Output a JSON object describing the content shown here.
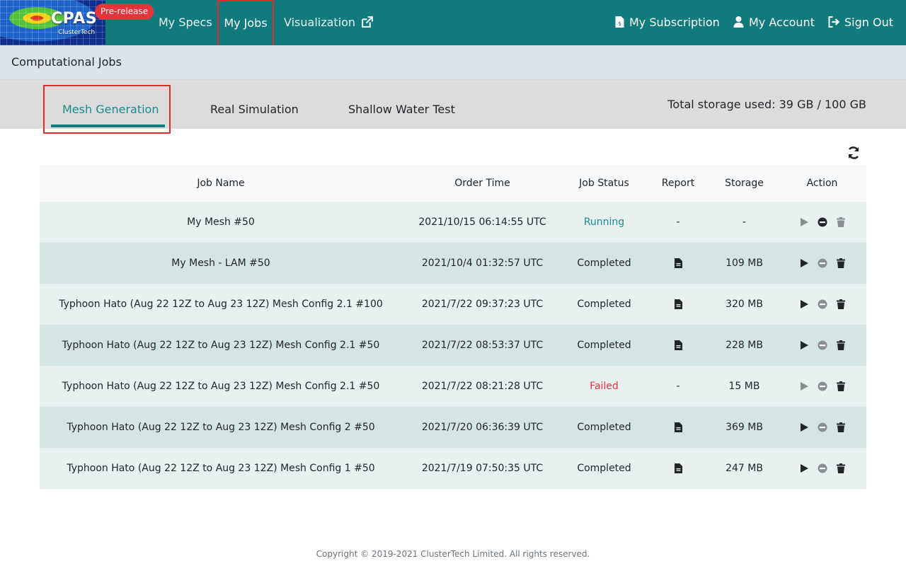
{
  "brand": {
    "logo_text": "CPAS",
    "logo_sub": "ClusterTech",
    "badge": "Pre-release"
  },
  "nav": {
    "my_specs": "My Specs",
    "my_jobs": "My Jobs",
    "visualization": "Visualization",
    "subscription": "My Subscription",
    "account": "My Account",
    "sign_out": "Sign Out"
  },
  "page_title": "Computational Jobs",
  "tabs": [
    {
      "label": "Mesh Generation",
      "active": true
    },
    {
      "label": "Real Simulation",
      "active": false
    },
    {
      "label": "Shallow Water Test",
      "active": false
    }
  ],
  "storage_text": "Total storage used: 39 GB / 100 GB",
  "table": {
    "headers": {
      "name": "Job Name",
      "time": "Order Time",
      "status": "Job Status",
      "report": "Report",
      "storage": "Storage",
      "action": "Action"
    },
    "rows": [
      {
        "name": "My Mesh #50",
        "time": "2021/10/15 06:14:55 UTC",
        "status": "Running",
        "report": "-",
        "storage": "-"
      },
      {
        "name": "My Mesh - LAM #50",
        "time": "2021/10/4 01:32:57 UTC",
        "status": "Completed",
        "report": "doc",
        "storage": "109 MB"
      },
      {
        "name": "Typhoon Hato (Aug 22 12Z to Aug 23 12Z) Mesh Config 2.1 #100",
        "time": "2021/7/22 09:37:23 UTC",
        "status": "Completed",
        "report": "doc",
        "storage": "320 MB"
      },
      {
        "name": "Typhoon Hato (Aug 22 12Z to Aug 23 12Z) Mesh Config 2.1 #50",
        "time": "2021/7/22 08:53:37 UTC",
        "status": "Completed",
        "report": "doc",
        "storage": "228 MB"
      },
      {
        "name": "Typhoon Hato (Aug 22 12Z to Aug 23 12Z) Mesh Config 2.1 #50",
        "time": "2021/7/22 08:21:28 UTC",
        "status": "Failed",
        "report": "-",
        "storage": "15 MB"
      },
      {
        "name": "Typhoon Hato (Aug 22 12Z to Aug 23 12Z) Mesh Config 2 #50",
        "time": "2021/7/20 06:36:39 UTC",
        "status": "Completed",
        "report": "doc",
        "storage": "369 MB"
      },
      {
        "name": "Typhoon Hato (Aug 22 12Z to Aug 23 12Z) Mesh Config 1 #50",
        "time": "2021/7/19 07:50:35 UTC",
        "status": "Completed",
        "report": "doc",
        "storage": "247 MB"
      }
    ]
  },
  "footer": "Copyright © 2019-2021 ClusterTech Limited. All rights reserved.",
  "colors": {
    "navbar": "#117a7c",
    "accent": "#1a8a8c",
    "failed": "#e5343b",
    "highlight": "#e02b2b"
  }
}
